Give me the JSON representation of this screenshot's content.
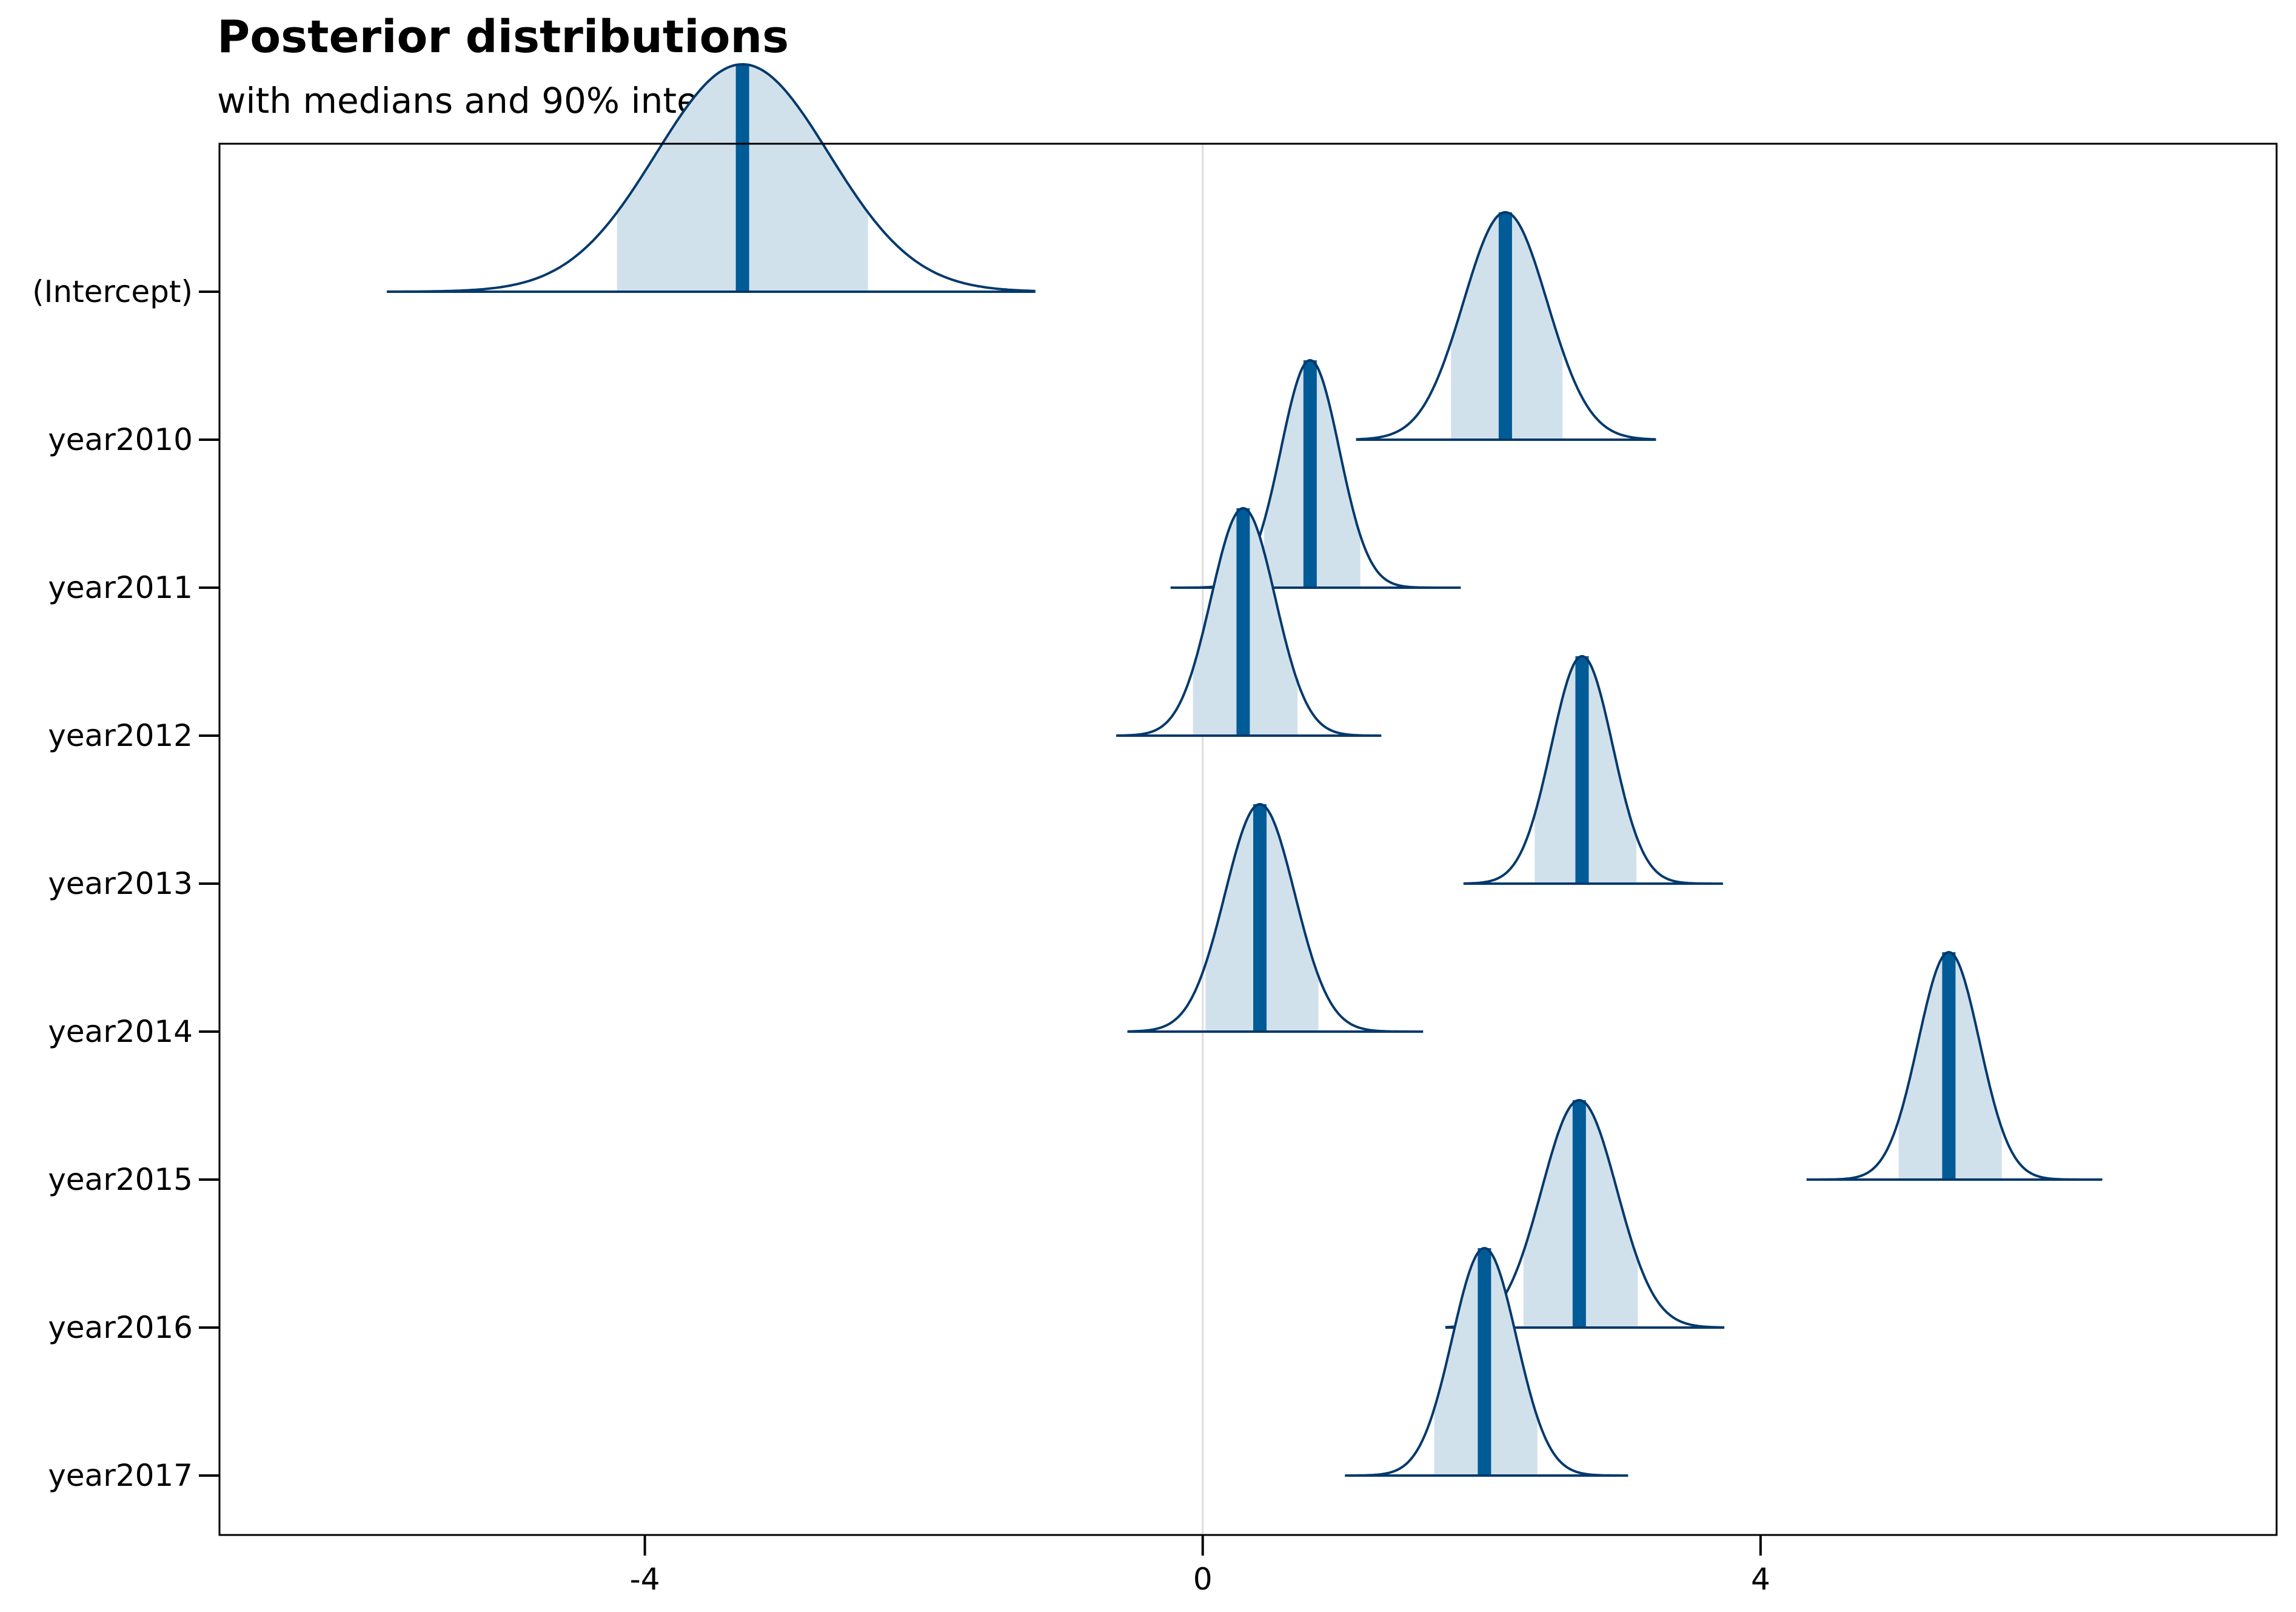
{
  "chart_data": {
    "type": "ridgeline",
    "title": "Posterior distributions",
    "subtitle": "with medians and 90% intervals",
    "xlim": [
      -7.05,
      7.7
    ],
    "x_ticks": [
      -4,
      0,
      4
    ],
    "x_tick_labels": [
      "-4",
      "0",
      "4"
    ],
    "reference_line_x": 0,
    "grid": false,
    "colors": {
      "fill": "#d1e1ec",
      "outline": "#03396c",
      "median": "#005b96",
      "reference_line": "#dddddd"
    },
    "series": [
      {
        "name": "(Intercept)",
        "median": -3.3,
        "sd": 0.62,
        "interval_90": [
          -4.2,
          -2.4
        ],
        "range": [
          -5.85,
          -1.2
        ]
      },
      {
        "name": "year2010",
        "median": 2.17,
        "sd": 0.3,
        "interval_90": [
          1.78,
          2.58
        ],
        "range": [
          1.1,
          3.25
        ]
      },
      {
        "name": "year2011",
        "median": 0.77,
        "sd": 0.21,
        "interval_90": [
          0.44,
          1.13
        ],
        "range": [
          -0.23,
          1.85
        ]
      },
      {
        "name": "year2012",
        "median": 0.29,
        "sd": 0.23,
        "interval_90": [
          -0.07,
          0.68
        ],
        "range": [
          -0.62,
          1.28
        ]
      },
      {
        "name": "year2013",
        "median": 2.72,
        "sd": 0.22,
        "interval_90": [
          2.38,
          3.11
        ],
        "range": [
          1.87,
          3.73
        ]
      },
      {
        "name": "year2014",
        "median": 0.41,
        "sd": 0.25,
        "interval_90": [
          0.02,
          0.83
        ],
        "range": [
          -0.54,
          1.58
        ]
      },
      {
        "name": "year2015",
        "median": 5.35,
        "sd": 0.22,
        "interval_90": [
          4.99,
          5.73
        ],
        "range": [
          4.33,
          6.45
        ]
      },
      {
        "name": "year2016",
        "median": 2.7,
        "sd": 0.27,
        "interval_90": [
          2.3,
          3.12
        ],
        "range": [
          1.74,
          3.74
        ]
      },
      {
        "name": "year2017",
        "median": 2.02,
        "sd": 0.23,
        "interval_90": [
          1.66,
          2.4
        ],
        "range": [
          1.02,
          3.05
        ]
      }
    ]
  }
}
